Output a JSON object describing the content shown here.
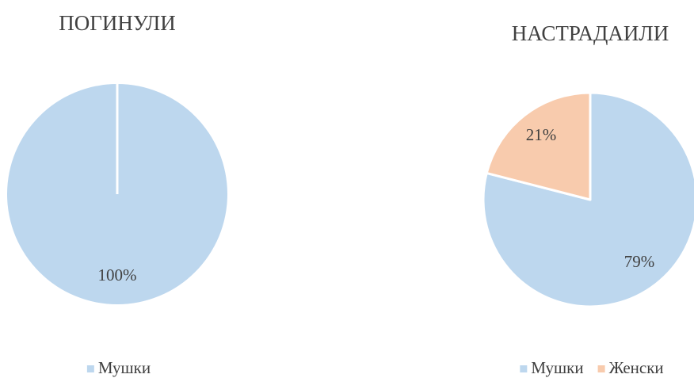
{
  "chart_data": [
    {
      "type": "pie",
      "title": "ПОГИНУЛИ",
      "categories": [
        "Мушки"
      ],
      "values": [
        100
      ],
      "value_labels": [
        "100%"
      ],
      "colors": [
        "#bdd7ee"
      ]
    },
    {
      "type": "pie",
      "title": "НАСТРАДАИЛИ",
      "categories": [
        "Мушки",
        "Женски"
      ],
      "values": [
        79,
        21
      ],
      "value_labels": [
        "79%",
        "21%"
      ],
      "colors": [
        "#bdd7ee",
        "#f8cbad"
      ]
    }
  ]
}
